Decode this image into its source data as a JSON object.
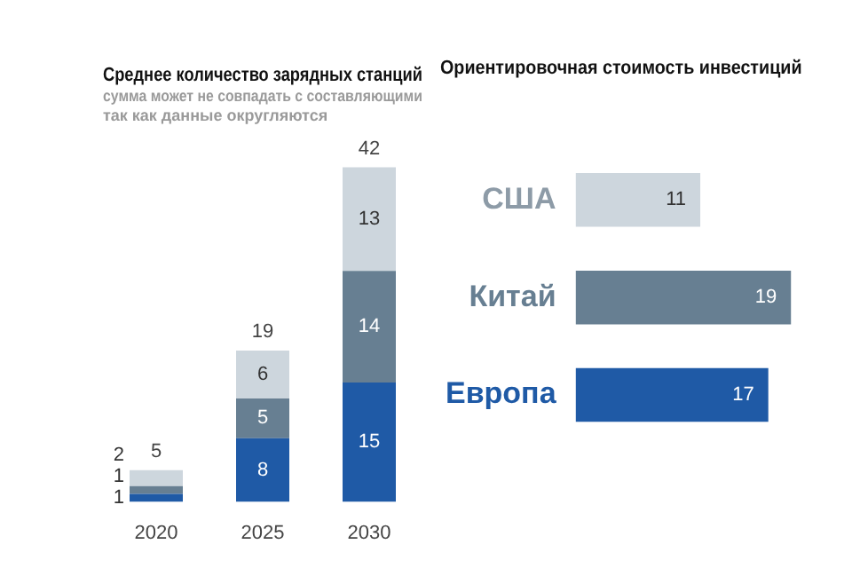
{
  "chart_data": [
    {
      "type": "bar",
      "title": "Среднее количество зарядных станций",
      "subtitle": "сумма может не совпадать с составляющими так как данные округляются",
      "categories": [
        "2020",
        "2025",
        "2030"
      ],
      "stacked": true,
      "tick_labels": "x",
      "data_labels": true,
      "totals": [
        "5",
        "19",
        "42"
      ],
      "series": [
        {
          "color": "#1f5aa6",
          "values": [
            1,
            8,
            15
          ]
        },
        {
          "color": "#677f92",
          "values": [
            1,
            5,
            14
          ]
        },
        {
          "color": "#cdd6dd",
          "values": [
            2,
            6,
            13
          ]
        }
      ]
    },
    {
      "type": "bar",
      "orientation": "horizontal",
      "title": "Ориентировочная стоимость инвестиций",
      "categories": [
        "США",
        "Китай",
        "Европа"
      ],
      "tick_labels": "y",
      "data_labels": true,
      "values": [
        11,
        19,
        17
      ],
      "colors": [
        "#cdd6dd",
        "#677f92",
        "#1f5aa6"
      ]
    }
  ]
}
